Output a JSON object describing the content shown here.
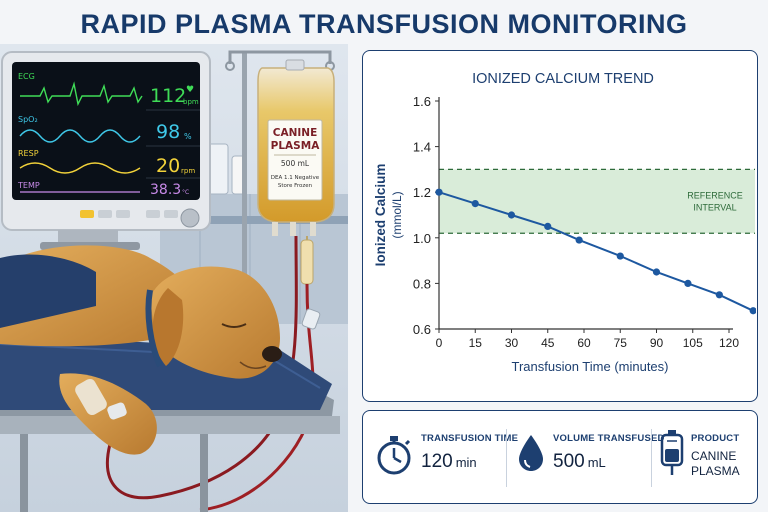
{
  "headline": "RAPID PLASMA TRANSFUSION MONITORING",
  "monitor": {
    "ecg_label": "ECG",
    "ecg_value": "112",
    "ecg_unit": "bpm",
    "spo2_label": "SpO₂",
    "spo2_value": "98",
    "spo2_unit": "%",
    "resp_label": "RESP",
    "resp_value": "20",
    "resp_unit": "rpm",
    "temp_label": "TEMP",
    "temp_value": "38.3",
    "temp_unit": "°C"
  },
  "plasma_bag": {
    "title_line1": "CANINE",
    "title_line2": "PLASMA",
    "volume": "500 mL",
    "note_line1": "DEA 1.1 Negative",
    "note_line2": "Store Frozen"
  },
  "chart_data": {
    "type": "line",
    "title": "IONIZED CALCIUM TREND",
    "xlabel": "Transfusion Time (minutes)",
    "ylabel_line1": "Ionized Calcium",
    "ylabel_line2": "(mmol/L)",
    "xlim": [
      0,
      120
    ],
    "ylim": [
      0.6,
      1.6
    ],
    "x_ticks": [
      0,
      15,
      30,
      45,
      60,
      75,
      90,
      105,
      120
    ],
    "y_ticks": [
      "0.6",
      "0.8",
      "1.0",
      "1.2",
      "1.4",
      "1.6"
    ],
    "reference_band": [
      1.02,
      1.3
    ],
    "reference_label_line1": "REFERENCE",
    "reference_label_line2": "INTERVAL",
    "grid": false,
    "series": [
      {
        "x": [
          0,
          15,
          30,
          45,
          58,
          75,
          90,
          103,
          116,
          130
        ],
        "y": [
          1.2,
          1.15,
          1.1,
          1.05,
          0.99,
          0.92,
          0.85,
          0.8,
          0.75,
          0.68
        ],
        "color": "#1d58a0"
      }
    ]
  },
  "info": {
    "time_label": "TRANSFUSION TIME",
    "time_value": "120",
    "time_unit": "min",
    "volume_label": "VOLUME TRANSFUSED",
    "volume_value": "500",
    "volume_unit": "mL",
    "product_label": "PRODUCT",
    "product_line1": "CANINE",
    "product_line2": "PLASMA"
  },
  "colors": {
    "navy": "#1d3f70",
    "series": "#1d58a0",
    "band": "#d9ecd9",
    "band_line": "#2e6b3a"
  }
}
